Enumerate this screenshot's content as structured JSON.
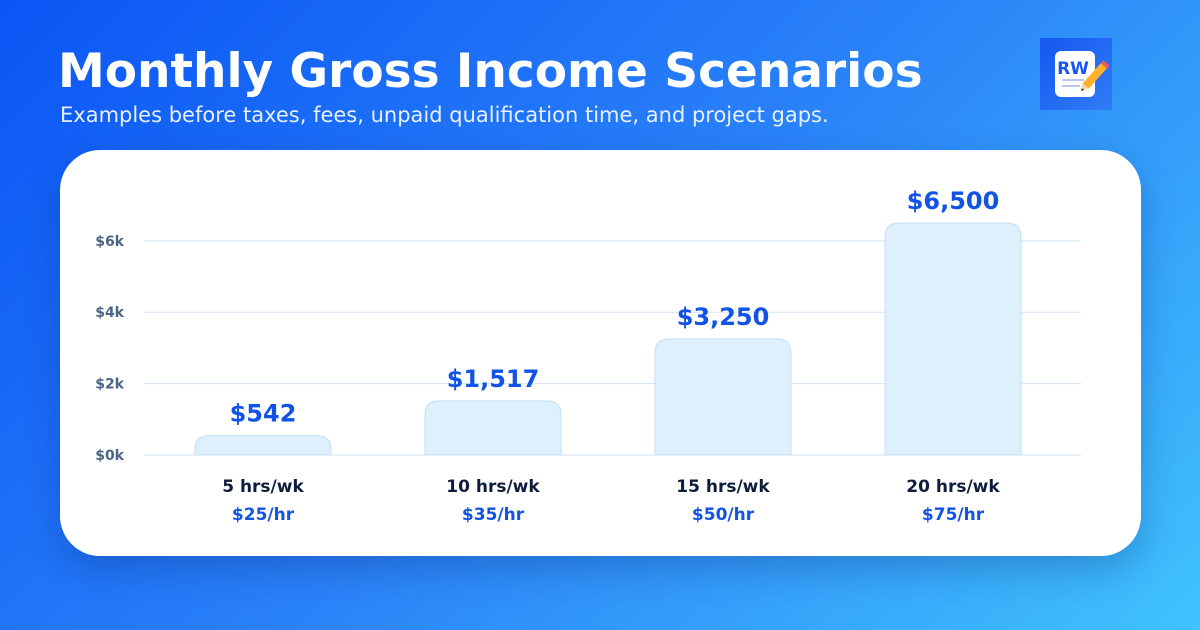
{
  "header": {
    "title": "Monthly Gross Income Scenarios",
    "subtitle": "Examples before taxes, fees, unpaid qualification time, and project gaps."
  },
  "logo": {
    "text": "RW",
    "icon": "document-pencil-icon"
  },
  "colors": {
    "bar_fill": "#dff0fd",
    "bar_stroke": "#c4def3",
    "value_label": "#1153e6",
    "category_label": "#0f1d3d",
    "gridline": "#d2e5f0",
    "tick_label": "#4b6586"
  },
  "chart_data": {
    "type": "bar",
    "title": "Monthly Gross Income Scenarios",
    "subtitle": "Examples before taxes, fees, unpaid qualification time, and project gaps.",
    "categories": [
      "5 hrs/wk",
      "10 hrs/wk",
      "15 hrs/wk",
      "20 hrs/wk"
    ],
    "category_sublabels": [
      "$25/hr",
      "$35/hr",
      "$50/hr",
      "$75/hr"
    ],
    "values": [
      542,
      1517,
      3250,
      6500
    ],
    "value_labels": [
      "$542",
      "$1,517",
      "$3,250",
      "$6,500"
    ],
    "y_ticks": [
      0,
      2000,
      4000,
      6000
    ],
    "y_tick_labels": [
      "$0k",
      "$2k",
      "$4k",
      "$6k"
    ],
    "ylim": [
      0,
      6500
    ],
    "xlabel": "",
    "ylabel": "",
    "grid": true,
    "legend": "none"
  }
}
